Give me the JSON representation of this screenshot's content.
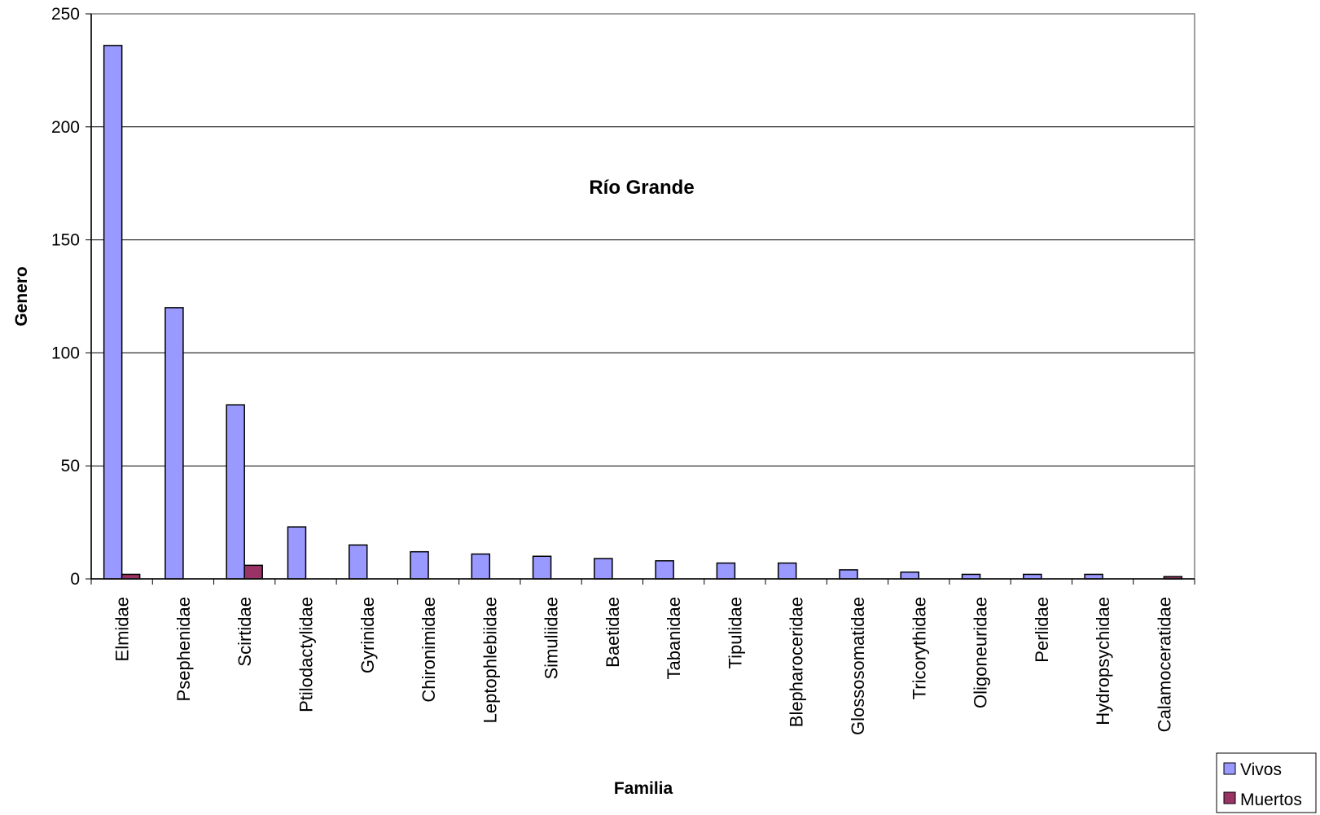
{
  "chart_data": {
    "type": "bar",
    "title": "Río Grande",
    "xlabel": "Familia",
    "ylabel": "Genero",
    "ylim": [
      0,
      250
    ],
    "yticks": [
      0,
      50,
      100,
      150,
      200,
      250
    ],
    "grid": true,
    "legend_position": "bottom-right",
    "categories": [
      "Elmidae",
      "Psephenidae",
      "Scirtidae",
      "Ptilodactylidae",
      "Gyrinidae",
      "Chironimidae",
      "Leptophlebiidae",
      "Simuliidae",
      "Baetidae",
      "Tabanidae",
      "Tipulidae",
      "Blepharoceridae",
      "Glossosomatidae",
      "Tricorythidae",
      "Oligoneuridae",
      "Perlidae",
      "Hydropsychidae",
      "Calamoceratidae"
    ],
    "series": [
      {
        "name": "Vivos",
        "color": "#9999ff",
        "values": [
          236,
          120,
          77,
          23,
          15,
          12,
          11,
          10,
          9,
          8,
          7,
          7,
          4,
          3,
          2,
          2,
          2,
          0
        ]
      },
      {
        "name": "Muertos",
        "color": "#993366",
        "values": [
          2,
          0,
          6,
          0,
          0,
          0,
          0,
          0,
          0,
          0,
          0,
          0,
          0,
          0,
          0,
          0,
          0,
          1
        ]
      }
    ]
  }
}
